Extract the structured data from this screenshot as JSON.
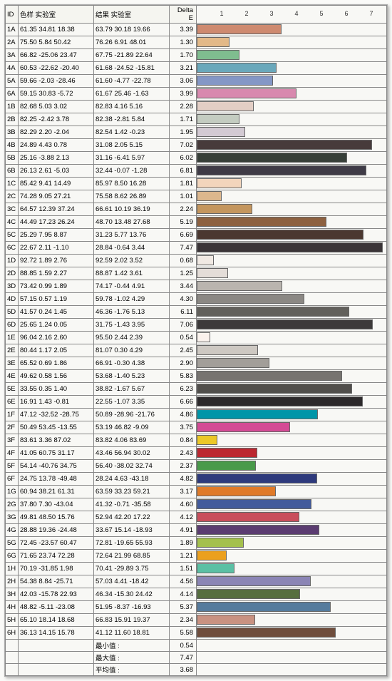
{
  "headers": {
    "id": "ID",
    "sample": "色样 实验室",
    "result": "结果 实验室",
    "delta": "Delta E"
  },
  "chart": {
    "max": 7.6,
    "ticks": [
      1,
      2,
      3,
      4,
      5,
      6,
      7
    ],
    "bar_border": "#666666"
  },
  "rows": [
    {
      "id": "1A",
      "sample": "61.35 34.81 18.38",
      "result": "63.79 30.18 19.66",
      "delta": "3.39",
      "color": "#ce8a70"
    },
    {
      "id": "2A",
      "sample": "75.50  5.84 50.42",
      "result": "76.26  6.91 48.01",
      "delta": "1.30",
      "color": "#e3b988"
    },
    {
      "id": "3A",
      "sample": "66.82 -25.06 23.47",
      "result": "67.75 -21.89 22.64",
      "delta": "1.70",
      "color": "#7fbd8f"
    },
    {
      "id": "4A",
      "sample": "60.53 -22.62 -20.40",
      "result": "61.68 -24.52 -15.81",
      "delta": "3.21",
      "color": "#6aa8bb"
    },
    {
      "id": "5A",
      "sample": "59.66  -2.03 -28.46",
      "result": "61.60  -4.77 -22.78",
      "delta": "3.06",
      "color": "#8497c6"
    },
    {
      "id": "6A",
      "sample": "59.15 30.83  -5.72",
      "result": "61.67 25.46  -1.63",
      "delta": "3.99",
      "color": "#d889ae"
    },
    {
      "id": "1B",
      "sample": "82.68  5.03   3.02",
      "result": "82.83  4.16   5.16",
      "delta": "2.28",
      "color": "#e3cec5"
    },
    {
      "id": "2B",
      "sample": "82.25  -2.42  3.78",
      "result": "82.38  -2.81  5.84",
      "delta": "1.71",
      "color": "#c4ccc1"
    },
    {
      "id": "3B",
      "sample": "82.29  2.20  -2.04",
      "result": "82.54  1.42  -0.23",
      "delta": "1.95",
      "color": "#d3cad3"
    },
    {
      "id": "4B",
      "sample": "24.89  4.43  0.78",
      "result": "31.08  2.05  5.15",
      "delta": "7.02",
      "color": "#473b3b"
    },
    {
      "id": "5B",
      "sample": "25.16  -3.88  2.13",
      "result": "31.16  -6.41  5.97",
      "delta": "6.02",
      "color": "#373f38"
    },
    {
      "id": "6B",
      "sample": "26.13  2.61  -5.03",
      "result": "32.44  -0.07 -1.28",
      "delta": "6.81",
      "color": "#3f3b46"
    },
    {
      "id": "1C",
      "sample": "85.42  9.41 14.49",
      "result": "85.97  8.50 16.28",
      "delta": "1.81",
      "color": "#f2d5bc"
    },
    {
      "id": "2C",
      "sample": "74.28  9.05 27.21",
      "result": "75.58  8.62 26.89",
      "delta": "1.01",
      "color": "#dcb78d"
    },
    {
      "id": "3C",
      "sample": "64.57 12.39 37.24",
      "result": "66.61 10.19 36.19",
      "delta": "2.24",
      "color": "#c4965e"
    },
    {
      "id": "4C",
      "sample": "44.49 17.23 26.24",
      "result": "48.70 13.48 27.68",
      "delta": "5.19",
      "color": "#8d6140"
    },
    {
      "id": "5C",
      "sample": "25.29  7.95  8.87",
      "result": "31.23  5.77 13.76",
      "delta": "6.69",
      "color": "#4b3830"
    },
    {
      "id": "6C",
      "sample": "22.67  2.11  -1.10",
      "result": "28.84  -0.64  3.44",
      "delta": "7.47",
      "color": "#3a3437"
    },
    {
      "id": "1D",
      "sample": "92.72  1.89  2.76",
      "result": "92.59  2.02  3.52",
      "delta": "0.68",
      "color": "#f0e9e3"
    },
    {
      "id": "2D",
      "sample": "88.85  1.59  2.27",
      "result": "88.87  1.42  3.61",
      "delta": "1.25",
      "color": "#e4ddd8"
    },
    {
      "id": "3D",
      "sample": "73.42  0.99  1.89",
      "result": "74.17  -0.44  4.91",
      "delta": "3.44",
      "color": "#bab5af"
    },
    {
      "id": "4D",
      "sample": "57.15  0.57  1.19",
      "result": "59.78  -1.02  4.29",
      "delta": "4.30",
      "color": "#8b8884"
    },
    {
      "id": "5D",
      "sample": "41.57  0.24  1.45",
      "result": "46.36  -1.76  5.13",
      "delta": "6.11",
      "color": "#62605c"
    },
    {
      "id": "6D",
      "sample": "25.65  1.24  0.05",
      "result": "31.75  -1.43  3.95",
      "delta": "7.06",
      "color": "#3d3a3a"
    },
    {
      "id": "1E",
      "sample": "96.04  2.16  2.60",
      "result": "95.50  2.44  2.39",
      "delta": "0.54",
      "color": "#faf2ed"
    },
    {
      "id": "2E",
      "sample": "80.44  1.17  2.05",
      "result": "81.07  0.30  4.29",
      "delta": "2.45",
      "color": "#cdc8c2"
    },
    {
      "id": "3E",
      "sample": "65.52  0.69  1.86",
      "result": "66.91  -0.30  4.38",
      "delta": "2.90",
      "color": "#a29e99"
    },
    {
      "id": "4E",
      "sample": "49.62  0.58  1.56",
      "result": "53.68  -1.40  5.23",
      "delta": "5.83",
      "color": "#777470"
    },
    {
      "id": "5E",
      "sample": "33.55  0.35  1.40",
      "result": "38.82  -1.67  5.67",
      "delta": "6.23",
      "color": "#504e4b"
    },
    {
      "id": "6E",
      "sample": "16.91  1.43  -0.81",
      "result": "22.55  -1.07  3.35",
      "delta": "6.66",
      "color": "#2c292b"
    },
    {
      "id": "1F",
      "sample": "47.12 -32.52 -28.75",
      "result": "50.89 -28.96 -21.76",
      "delta": "4.86",
      "color": "#0095a8"
    },
    {
      "id": "2F",
      "sample": "50.49 53.45 -13.55",
      "result": "53.19 46.82  -9.09",
      "delta": "3.75",
      "color": "#d44b95"
    },
    {
      "id": "3F",
      "sample": "83.61  3.36 87.02",
      "result": "83.82  4.06 83.69",
      "delta": "0.84",
      "color": "#ecc827"
    },
    {
      "id": "4F",
      "sample": "41.05 60.75 31.17",
      "result": "43.46 56.94 30.02",
      "delta": "2.43",
      "color": "#bc2830"
    },
    {
      "id": "5F",
      "sample": "54.14 -40.76 34.75",
      "result": "56.40 -38.02 32.74",
      "delta": "2.37",
      "color": "#499a4a"
    },
    {
      "id": "6F",
      "sample": "24.75 13.78 -49.48",
      "result": "28.24  4.63 -43.18",
      "delta": "4.82",
      "color": "#2e3a7c"
    },
    {
      "id": "1G",
      "sample": "60.94 38.21 61.31",
      "result": "63.59 33.23 59.21",
      "delta": "3.17",
      "color": "#e07a28"
    },
    {
      "id": "2G",
      "sample": "37.80  7.30 -43.04",
      "result": "41.32  -0.71 -35.58",
      "delta": "4.60",
      "color": "#425a9c"
    },
    {
      "id": "3G",
      "sample": "49.81 48.50 15.76",
      "result": "52.94 42.20 17.22",
      "delta": "4.12",
      "color": "#c94e5c"
    },
    {
      "id": "4G",
      "sample": "28.88 19.36 -24.48",
      "result": "33.67 15.14 -18.93",
      "delta": "4.91",
      "color": "#5b3c71"
    },
    {
      "id": "5G",
      "sample": "72.45 -23.57 60.47",
      "result": "72.81 -19.65 55.93",
      "delta": "1.89",
      "color": "#a4c04d"
    },
    {
      "id": "6G",
      "sample": "71.65 23.74 72.28",
      "result": "72.64 21.99 68.85",
      "delta": "1.21",
      "color": "#eba01f"
    },
    {
      "id": "1H",
      "sample": "70.19 -31.85  1.98",
      "result": "70.41 -29.89  3.75",
      "delta": "1.51",
      "color": "#5bc0a4"
    },
    {
      "id": "2H",
      "sample": "54.38  8.84 -25.71",
      "result": "57.03  4.41 -18.42",
      "delta": "4.56",
      "color": "#8b85b5"
    },
    {
      "id": "3H",
      "sample": "42.03 -15.78 22.93",
      "result": "46.34 -15.30 24.42",
      "delta": "4.14",
      "color": "#566e3f"
    },
    {
      "id": "4H",
      "sample": "48.82  -5.11 -23.08",
      "result": "51.95  -8.37 -16.93",
      "delta": "5.37",
      "color": "#557b9d"
    },
    {
      "id": "5H",
      "sample": "65.10 18.14 18.68",
      "result": "66.83 15.91 19.37",
      "delta": "2.34",
      "color": "#c99281"
    },
    {
      "id": "6H",
      "sample": "36.13 14.15 15.78",
      "result": "41.12 11.60 18.81",
      "delta": "5.58",
      "color": "#6f4d3c"
    }
  ],
  "summary": [
    {
      "label": "最小值 :",
      "value": "0.54"
    },
    {
      "label": "最大值 :",
      "value": "7.47"
    },
    {
      "label": "平均值 :",
      "value": "3.68"
    }
  ]
}
